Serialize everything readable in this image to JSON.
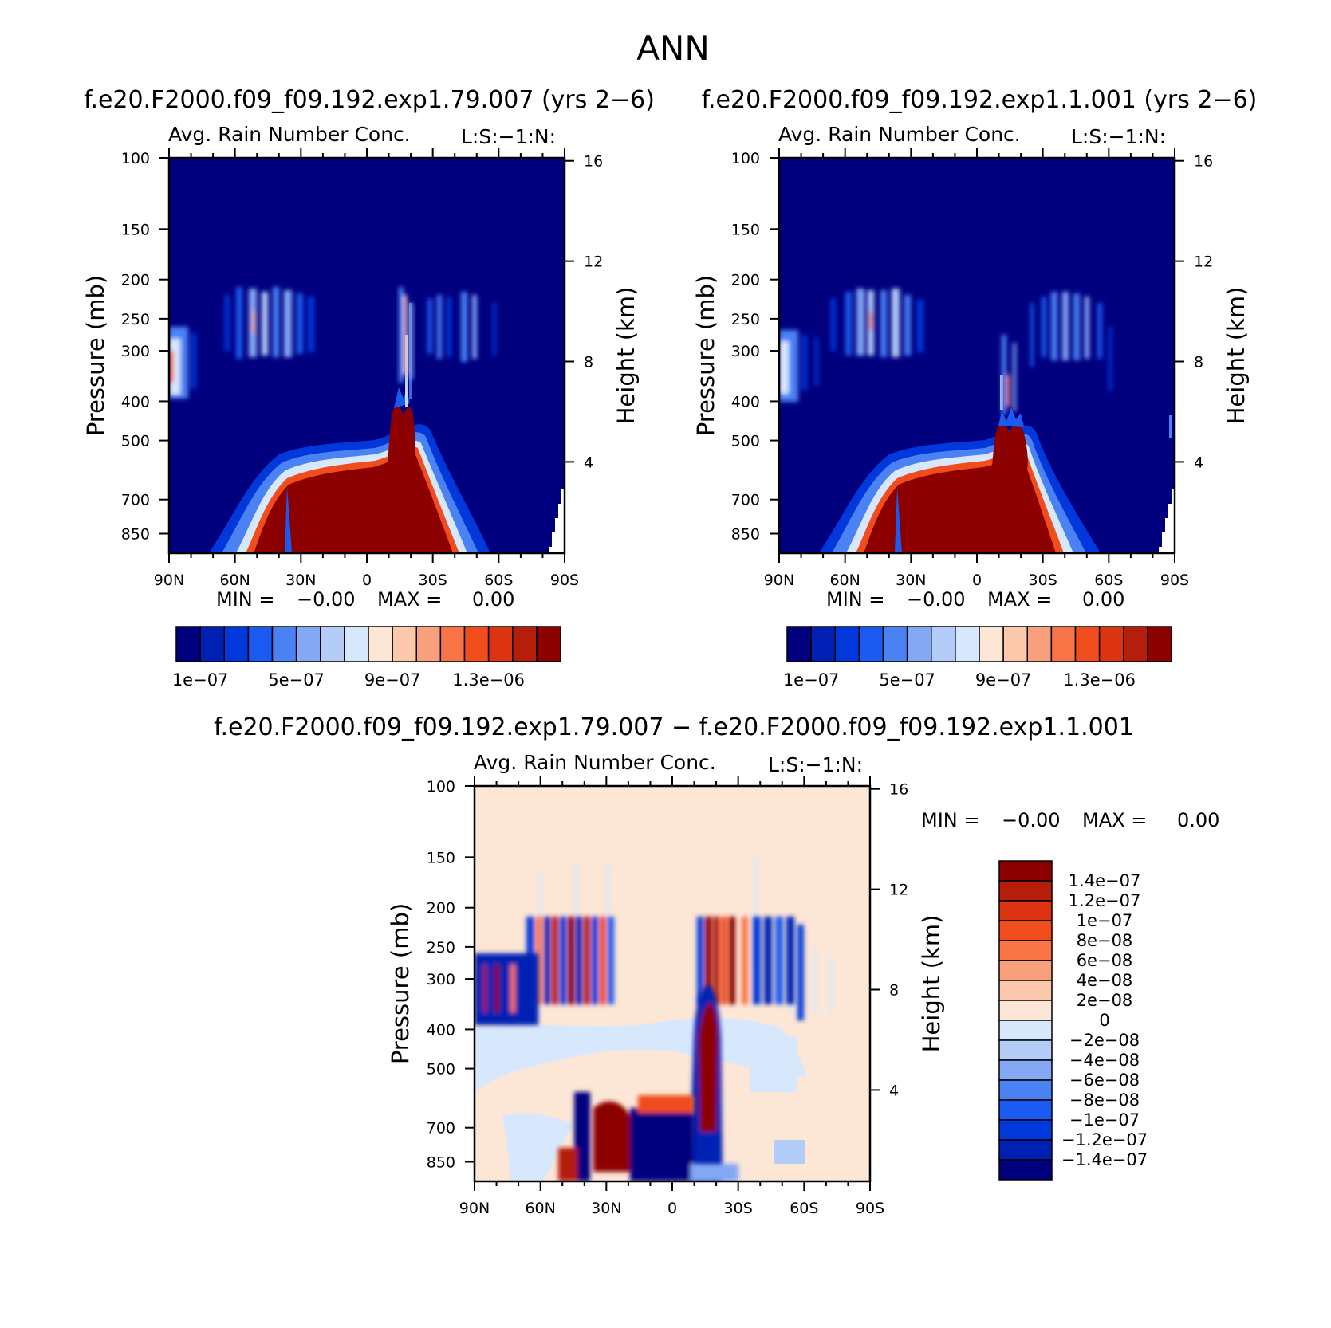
{
  "figure": {
    "title": "ANN"
  },
  "panels_top": [
    {
      "case_title": "f.e20.F2000.f09_f09.192.exp1.79.007 (yrs 2−6)",
      "var_title": "Avg. Rain Number Conc.",
      "tag": "L:S:−1:N:",
      "min_label": "MIN =",
      "min_value": "−0.00",
      "max_label": "MAX =",
      "max_value": "0.00"
    },
    {
      "case_title": "f.e20.F2000.f09_f09.192.exp1.1.001 (yrs 2−6)",
      "var_title": "Avg. Rain Number Conc.",
      "tag": "L:S:−1:N:",
      "min_label": "MIN =",
      "min_value": "−0.00",
      "max_label": "MAX =",
      "max_value": "0.00"
    }
  ],
  "panel_diff": {
    "case_title": "f.e20.F2000.f09_f09.192.exp1.79.007 − f.e20.F2000.f09_f09.192.exp1.1.001",
    "var_title": "Avg. Rain Number Conc.",
    "tag": "L:S:−1:N:",
    "min_label": "MIN =",
    "min_value": "−0.00",
    "max_label": "MAX =",
    "max_value": "0.00"
  },
  "axes": {
    "ylabel": "Pressure (mb)",
    "ylabel_right": "Height (km)",
    "pressure_ticks": [
      "100",
      "150",
      "200",
      "250",
      "300",
      "400",
      "500",
      "700",
      "850"
    ],
    "height_ticks": [
      "16",
      "12",
      "8",
      "4"
    ],
    "lat_ticks": [
      "90N",
      "60N",
      "30N",
      "0",
      "30S",
      "60S",
      "90S"
    ]
  },
  "colorbars": {
    "abs_labels": [
      "1e−07",
      "5e−07",
      "9e−07",
      "1.3e−06"
    ],
    "diff_labels": [
      "1.4e−07",
      "1.2e−07",
      "1e−07",
      "8e−08",
      "6e−08",
      "4e−08",
      "2e−08",
      "0",
      "−2e−08",
      "−4e−08",
      "−6e−08",
      "−8e−08",
      "−1e−07",
      "−1.2e−07",
      "−1.4e−07"
    ]
  },
  "colors": {
    "abs_scale": [
      "#00007f",
      "#0020b4",
      "#0038dc",
      "#1a5af0",
      "#4a82f4",
      "#84a8f4",
      "#b4ccf8",
      "#d8e8fc",
      "#fce6d6",
      "#fcc8ac",
      "#f8a07c",
      "#f87446",
      "#f04c1c",
      "#dc3410",
      "#b41e0a",
      "#8c0000"
    ],
    "diff_scale": [
      "#00007f",
      "#0020b4",
      "#0038dc",
      "#1a5af0",
      "#4a82f4",
      "#84a8f4",
      "#b4ccf8",
      "#d8e8fc",
      "#fce6d6",
      "#fcc8ac",
      "#f8a07c",
      "#f87446",
      "#f04c1c",
      "#dc3410",
      "#b41e0a",
      "#8c0000"
    ]
  },
  "chart_data": [
    {
      "type": "heatmap",
      "title": "Avg. Rain Number Conc.",
      "subtitle": "f.e20.F2000.f09_f09.192.exp1.79.007 (yrs 2−6)",
      "xlabel": "",
      "ylabel": "Pressure (mb)",
      "ylabel_right": "Height (km)",
      "xlim": [
        90,
        -90
      ],
      "ylim": [
        100,
        950
      ],
      "y_scale": "log",
      "y_reversed": true,
      "contour_levels": [
        1e-07,
        2e-07,
        3e-07,
        4e-07,
        5e-07,
        6e-07,
        7e-07,
        8e-07,
        9e-07,
        1e-06,
        1.1e-06,
        1.2e-06,
        1.3e-06,
        1.4e-06,
        1.5e-06
      ],
      "features": [
        {
          "region": "low-level rain",
          "lat_range": [
            45,
            -20
          ],
          "p_range": [
            520,
            950
          ],
          "level": "max"
        },
        {
          "region": "convective tower",
          "lat_range": [
            0,
            -15
          ],
          "p_range": [
            380,
            520
          ],
          "level": "max"
        },
        {
          "region": "NH upper streaks",
          "lat_range": [
            65,
            25
          ],
          "p_range": [
            210,
            330
          ],
          "level": "low"
        },
        {
          "region": "SH upper streaks",
          "lat_range": [
            -25,
            -55
          ],
          "p_range": [
            210,
            330
          ],
          "level": "low"
        },
        {
          "region": "NP edge",
          "lat_range": [
            90,
            80
          ],
          "p_range": [
            260,
            360
          ],
          "level": "mid"
        }
      ]
    },
    {
      "type": "heatmap",
      "title": "Avg. Rain Number Conc.",
      "subtitle": "f.e20.F2000.f09_f09.192.exp1.1.001 (yrs 2−6)",
      "xlabel": "",
      "ylabel": "Pressure (mb)",
      "ylabel_right": "Height (km)",
      "xlim": [
        90,
        -90
      ],
      "ylim": [
        100,
        950
      ],
      "y_scale": "log",
      "y_reversed": true,
      "contour_levels": [
        1e-07,
        2e-07,
        3e-07,
        4e-07,
        5e-07,
        6e-07,
        7e-07,
        8e-07,
        9e-07,
        1e-06,
        1.1e-06,
        1.2e-06,
        1.3e-06,
        1.4e-06,
        1.5e-06
      ],
      "features": [
        {
          "region": "low-level rain",
          "lat_range": [
            45,
            -20
          ],
          "p_range": [
            520,
            950
          ],
          "level": "max"
        },
        {
          "region": "convective tower",
          "lat_range": [
            -5,
            -25
          ],
          "p_range": [
            420,
            520
          ],
          "level": "max"
        },
        {
          "region": "NH upper streaks",
          "lat_range": [
            60,
            20
          ],
          "p_range": [
            210,
            330
          ],
          "level": "low"
        },
        {
          "region": "SH upper streaks",
          "lat_range": [
            -25,
            -60
          ],
          "p_range": [
            210,
            330
          ],
          "level": "low"
        }
      ]
    },
    {
      "type": "heatmap",
      "title": "Avg. Rain Number Conc.",
      "subtitle": "f.e20.F2000.f09_f09.192.exp1.79.007 − f.e20.F2000.f09_f09.192.exp1.1.001",
      "xlabel": "",
      "ylabel": "Pressure (mb)",
      "ylabel_right": "Height (km)",
      "xlim": [
        90,
        -90
      ],
      "ylim": [
        100,
        950
      ],
      "y_scale": "log",
      "y_reversed": true,
      "contour_levels": [
        -1.4e-07,
        -1.2e-07,
        -1e-07,
        -8e-08,
        -6e-08,
        -4e-08,
        -2e-08,
        0,
        2e-08,
        4e-08,
        6e-08,
        8e-08,
        1e-07,
        1.2e-07,
        1.4e-07
      ],
      "features": [
        {
          "region": "NH upper dipoles",
          "lat_range": [
            65,
            20
          ],
          "p_range": [
            200,
            330
          ],
          "level": "mixed"
        },
        {
          "region": "SH upper dipoles",
          "lat_range": [
            -10,
            -60
          ],
          "p_range": [
            200,
            330
          ],
          "level": "mixed"
        },
        {
          "region": "NP negative",
          "lat_range": [
            90,
            73
          ],
          "p_range": [
            260,
            390
          ],
          "level": "min"
        },
        {
          "region": "tropical positive",
          "lat_range": [
            -8,
            -20
          ],
          "p_range": [
            380,
            950
          ],
          "level": "max"
        },
        {
          "region": "low-level negative",
          "lat_range": [
            18,
            0
          ],
          "p_range": [
            640,
            950
          ],
          "level": "min"
        }
      ]
    }
  ]
}
